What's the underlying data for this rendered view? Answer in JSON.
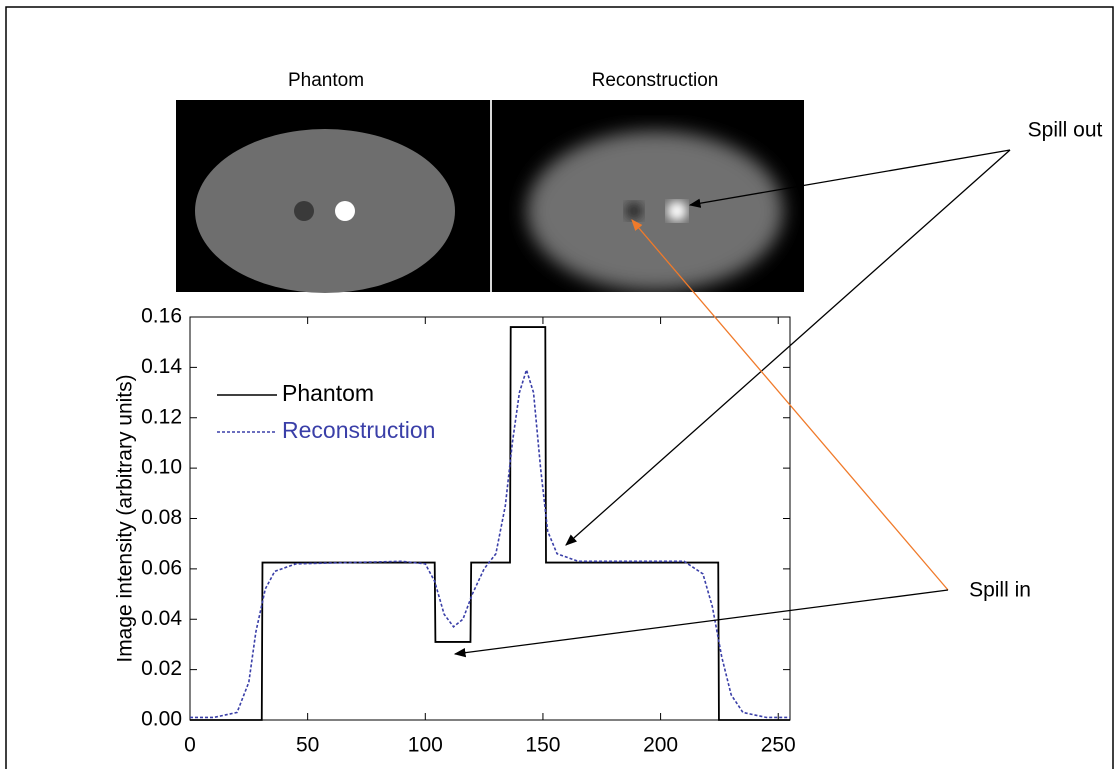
{
  "panel_titles": [
    "Phantom",
    "Reconstruction"
  ],
  "annotations": {
    "spill_out": "Spill out",
    "spill_in": "Spill in"
  },
  "chart_data": {
    "type": "line",
    "y_label": "Image intensity (arbitrary units)",
    "xlim": [
      0,
      255
    ],
    "ylim": [
      0,
      0.16
    ],
    "xticks": [
      0,
      50,
      100,
      150,
      200,
      250
    ],
    "yticks": [
      {
        "value": 0,
        "label": "0.00"
      },
      {
        "value": 0.02,
        "label": "0.02"
      },
      {
        "value": 0.04,
        "label": "0.04"
      },
      {
        "value": 0.06,
        "label": "0.06"
      },
      {
        "value": 0.08,
        "label": "0.08"
      },
      {
        "value": 0.1,
        "label": "0.10"
      },
      {
        "value": 0.12,
        "label": "0.12"
      },
      {
        "value": 0.14,
        "label": "0.14"
      },
      {
        "value": 0.16,
        "label": "0.16"
      }
    ],
    "series": [
      {
        "name": "Phantom",
        "color": "#000000",
        "dash": false,
        "x": [
          0,
          30.5,
          30.8,
          104,
          104.3,
          119.2,
          119.5,
          136,
          136.3,
          151,
          151.3,
          224.5,
          224.8,
          255
        ],
        "values": [
          0,
          0,
          0.0625,
          0.0625,
          0.031,
          0.031,
          0.0625,
          0.0625,
          0.156,
          0.156,
          0.0625,
          0.0625,
          0,
          0
        ]
      },
      {
        "name": "Reconstruction",
        "color": "#3a3fa8",
        "dash": true,
        "x": [
          0,
          10,
          20,
          25,
          28,
          32,
          36,
          45,
          90,
          100,
          104,
          108,
          112,
          116,
          120,
          125,
          130,
          134,
          137,
          140,
          143,
          146,
          149,
          152,
          156,
          165,
          210,
          218,
          222,
          226,
          230,
          235,
          245,
          255
        ],
        "values": [
          0.001,
          0.001,
          0.003,
          0.015,
          0.035,
          0.052,
          0.059,
          0.062,
          0.063,
          0.062,
          0.055,
          0.042,
          0.037,
          0.04,
          0.05,
          0.06,
          0.066,
          0.085,
          0.11,
          0.13,
          0.139,
          0.13,
          0.1,
          0.075,
          0.066,
          0.063,
          0.063,
          0.058,
          0.045,
          0.025,
          0.01,
          0.003,
          0.001,
          0.001
        ]
      }
    ]
  }
}
